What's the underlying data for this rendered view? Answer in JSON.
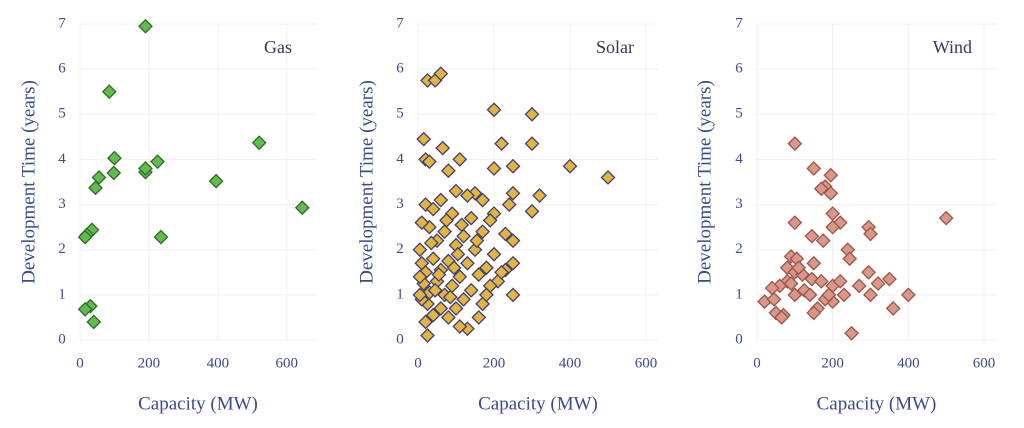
{
  "chart_data": [
    {
      "type": "scatter",
      "title": "Gas",
      "xlabel": "Capacity (MW)",
      "ylabel": "Development Time (years)",
      "color": "#63bb4f",
      "edge": "#2e6b24",
      "grid": true,
      "xlim": [
        0,
        650
      ],
      "xticks": [
        0,
        200,
        400,
        600
      ],
      "ylim": [
        0,
        7
      ],
      "yticks": [
        0,
        1,
        2,
        3,
        4,
        5,
        6,
        7
      ],
      "x": [
        190,
        85,
        100,
        98,
        55,
        45,
        190,
        190,
        225,
        520,
        395,
        235,
        645,
        35,
        20,
        15,
        30,
        15,
        40
      ],
      "values": [
        6.95,
        5.5,
        4.03,
        3.7,
        3.6,
        3.37,
        3.72,
        3.8,
        3.95,
        4.37,
        3.52,
        2.28,
        2.93,
        2.44,
        2.33,
        2.28,
        0.75,
        0.68,
        0.4
      ]
    },
    {
      "type": "scatter",
      "title": "Solar",
      "xlabel": "Capacity (MW)",
      "ylabel": "Development Time (years)",
      "color": "#e3b53c",
      "edge": "#3d3f78",
      "grid": true,
      "xlim": [
        0,
        600
      ],
      "xticks": [
        0,
        200,
        400,
        600
      ],
      "ylim": [
        0,
        7
      ],
      "yticks": [
        0,
        1,
        2,
        3,
        4,
        5,
        6,
        7
      ],
      "x": [
        25,
        45,
        60,
        200,
        300,
        15,
        65,
        110,
        20,
        30,
        80,
        400,
        500,
        320,
        250,
        300,
        220,
        200,
        150,
        170,
        250,
        240,
        300,
        200,
        100,
        130,
        60,
        20,
        40,
        90,
        140,
        190,
        250,
        230,
        170,
        120,
        70,
        30,
        10,
        50,
        100,
        150,
        200,
        250,
        230,
        180,
        130,
        80,
        40,
        10,
        20,
        60,
        110,
        160,
        210,
        250,
        190,
        140,
        90,
        50,
        15,
        30,
        70,
        120,
        170,
        100,
        60,
        25,
        10,
        40,
        80,
        130,
        160,
        25,
        110,
        20,
        55,
        95,
        35,
        75,
        115,
        155,
        45,
        85,
        105,
        5,
        5,
        5,
        180,
        220
      ],
      "values": [
        5.75,
        5.75,
        5.9,
        5.1,
        5.0,
        4.45,
        4.25,
        4.0,
        4.0,
        3.95,
        3.75,
        3.85,
        3.6,
        3.2,
        3.85,
        4.35,
        4.35,
        3.8,
        3.25,
        3.1,
        3.25,
        3.0,
        2.85,
        2.8,
        3.3,
        3.2,
        3.1,
        3.0,
        2.9,
        2.8,
        2.7,
        2.65,
        2.2,
        2.35,
        2.4,
        2.3,
        2.4,
        2.5,
        2.6,
        2.2,
        2.1,
        2.0,
        1.9,
        1.7,
        1.55,
        1.6,
        1.7,
        1.75,
        1.8,
        1.7,
        1.5,
        1.55,
        1.4,
        1.45,
        1.3,
        1.0,
        1.2,
        1.1,
        1.2,
        1.3,
        1.25,
        1.05,
        1.0,
        0.9,
        0.8,
        0.7,
        0.7,
        0.8,
        0.9,
        0.55,
        0.5,
        0.25,
        0.5,
        0.1,
        0.3,
        0.4,
        1.45,
        1.6,
        2.15,
        2.65,
        2.55,
        2.2,
        1.1,
        0.95,
        1.9,
        1.0,
        1.4,
        2.0,
        1.0,
        1.5
      ]
    },
    {
      "type": "scatter",
      "title": "Wind",
      "xlabel": "Capacity (MW)",
      "ylabel": "Development Time (years)",
      "color": "#d9978a",
      "edge": "#9c5448",
      "grid": true,
      "xlim": [
        0,
        600
      ],
      "xticks": [
        0,
        200,
        400,
        600
      ],
      "ylim": [
        0,
        7
      ],
      "yticks": [
        0,
        1,
        2,
        3,
        4,
        5,
        6,
        7
      ],
      "x": [
        100,
        150,
        195,
        180,
        195,
        170,
        200,
        220,
        100,
        200,
        295,
        300,
        500,
        145,
        175,
        240,
        245,
        90,
        105,
        150,
        80,
        100,
        120,
        145,
        170,
        200,
        220,
        295,
        320,
        350,
        300,
        270,
        400,
        360,
        230,
        200,
        180,
        160,
        150,
        125,
        100,
        80,
        60,
        40,
        20,
        45,
        50,
        70,
        65,
        250,
        90,
        110,
        140,
        190
      ],
      "values": [
        4.35,
        3.8,
        3.65,
        3.4,
        3.25,
        3.35,
        2.8,
        2.6,
        2.6,
        2.5,
        2.5,
        2.35,
        2.7,
        2.3,
        2.2,
        2.0,
        1.8,
        1.85,
        1.8,
        1.7,
        1.6,
        1.5,
        1.45,
        1.35,
        1.3,
        1.2,
        1.3,
        1.5,
        1.25,
        1.35,
        1.0,
        1.2,
        1.0,
        0.7,
        1.0,
        0.85,
        0.9,
        0.7,
        0.6,
        1.1,
        1.0,
        1.3,
        1.2,
        1.15,
        0.85,
        0.9,
        0.6,
        0.55,
        0.5,
        0.15,
        1.25,
        1.6,
        1.0,
        1.0
      ]
    }
  ]
}
